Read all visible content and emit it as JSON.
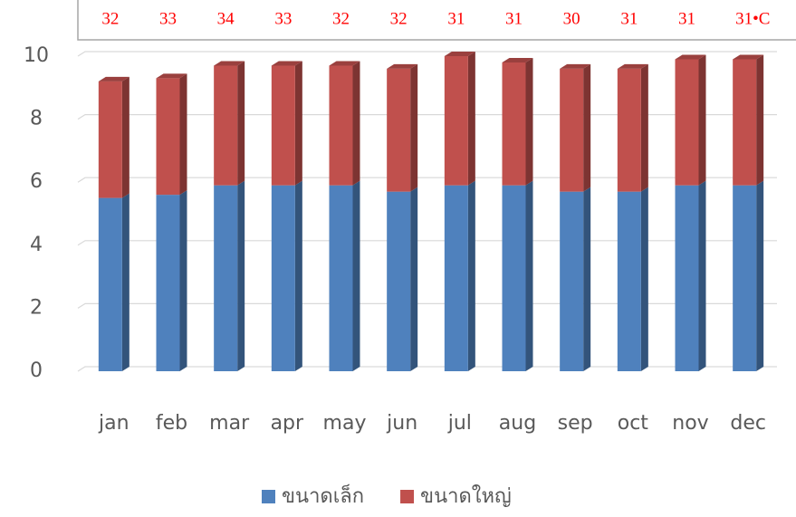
{
  "chart_data": {
    "type": "bar",
    "stacked": true,
    "categories": [
      "jan",
      "feb",
      "mar",
      "apr",
      "may",
      "jun",
      "jul",
      "aug",
      "sep",
      "oct",
      "nov",
      "dec"
    ],
    "series": [
      {
        "name": "ขนาดเล็ก",
        "color": "#4f81bd",
        "values": [
          5.5,
          5.6,
          5.9,
          5.9,
          5.9,
          5.7,
          5.9,
          5.9,
          5.7,
          5.7,
          5.9,
          5.9
        ]
      },
      {
        "name": "ขนาดใหญ่",
        "color": "#c0504d",
        "values": [
          3.7,
          3.7,
          3.8,
          3.8,
          3.8,
          3.9,
          4.1,
          3.9,
          3.9,
          3.9,
          4.0,
          4.0
        ]
      }
    ],
    "annotations": [
      "32",
      "33",
      "34",
      "33",
      "32",
      "32",
      "31",
      "31",
      "30",
      "31",
      "31",
      "31•C"
    ],
    "ylim": [
      0,
      10
    ],
    "yticks": [
      0,
      2,
      4,
      6,
      8,
      10
    ],
    "grid": true,
    "legend": "bottom"
  }
}
